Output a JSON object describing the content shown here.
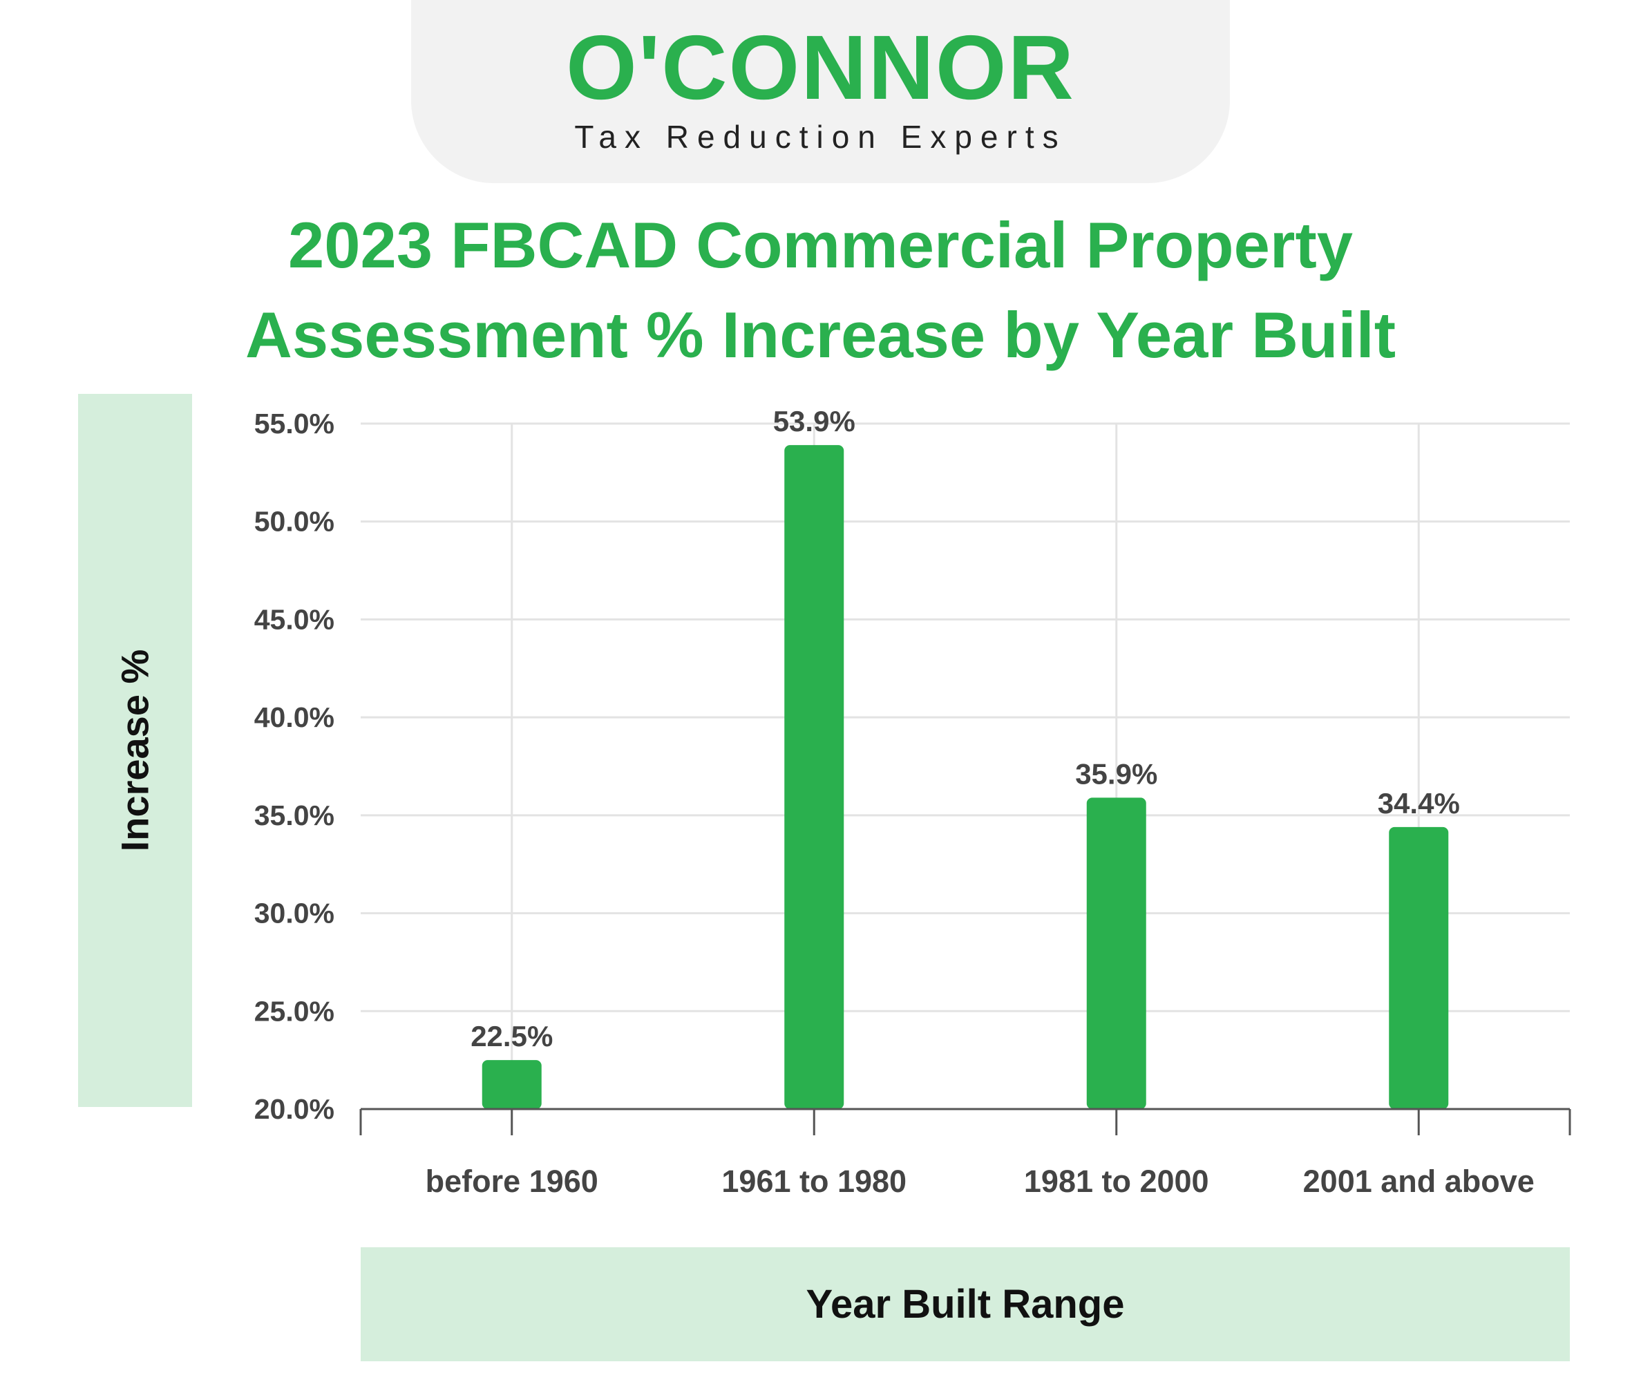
{
  "brand": {
    "name": "O'CONNOR",
    "tagline": "Tax Reduction Experts",
    "color": "#2ab04e"
  },
  "chart_data": {
    "type": "bar",
    "title_line1": "2023 FBCAD Commercial Property",
    "title_line2": "Assessment % Increase by Year Built",
    "xlabel": "Year Built Range",
    "ylabel": "Increase %",
    "categories": [
      "before 1960",
      "1961 to 1980",
      "1981 to 2000",
      "2001 and above"
    ],
    "values": [
      22.5,
      53.9,
      35.9,
      34.4
    ],
    "value_labels": [
      "22.5%",
      "53.9%",
      "35.9%",
      "34.4%"
    ],
    "ylim": [
      20,
      55
    ],
    "yticks": [
      20,
      25,
      30,
      35,
      40,
      45,
      50,
      55
    ],
    "ytick_labels": [
      "20.0%",
      "25.0%",
      "30.0%",
      "35.0%",
      "40.0%",
      "45.0%",
      "50.0%",
      "55.0%"
    ],
    "grid": true,
    "bar_color": "#2ab04e"
  }
}
